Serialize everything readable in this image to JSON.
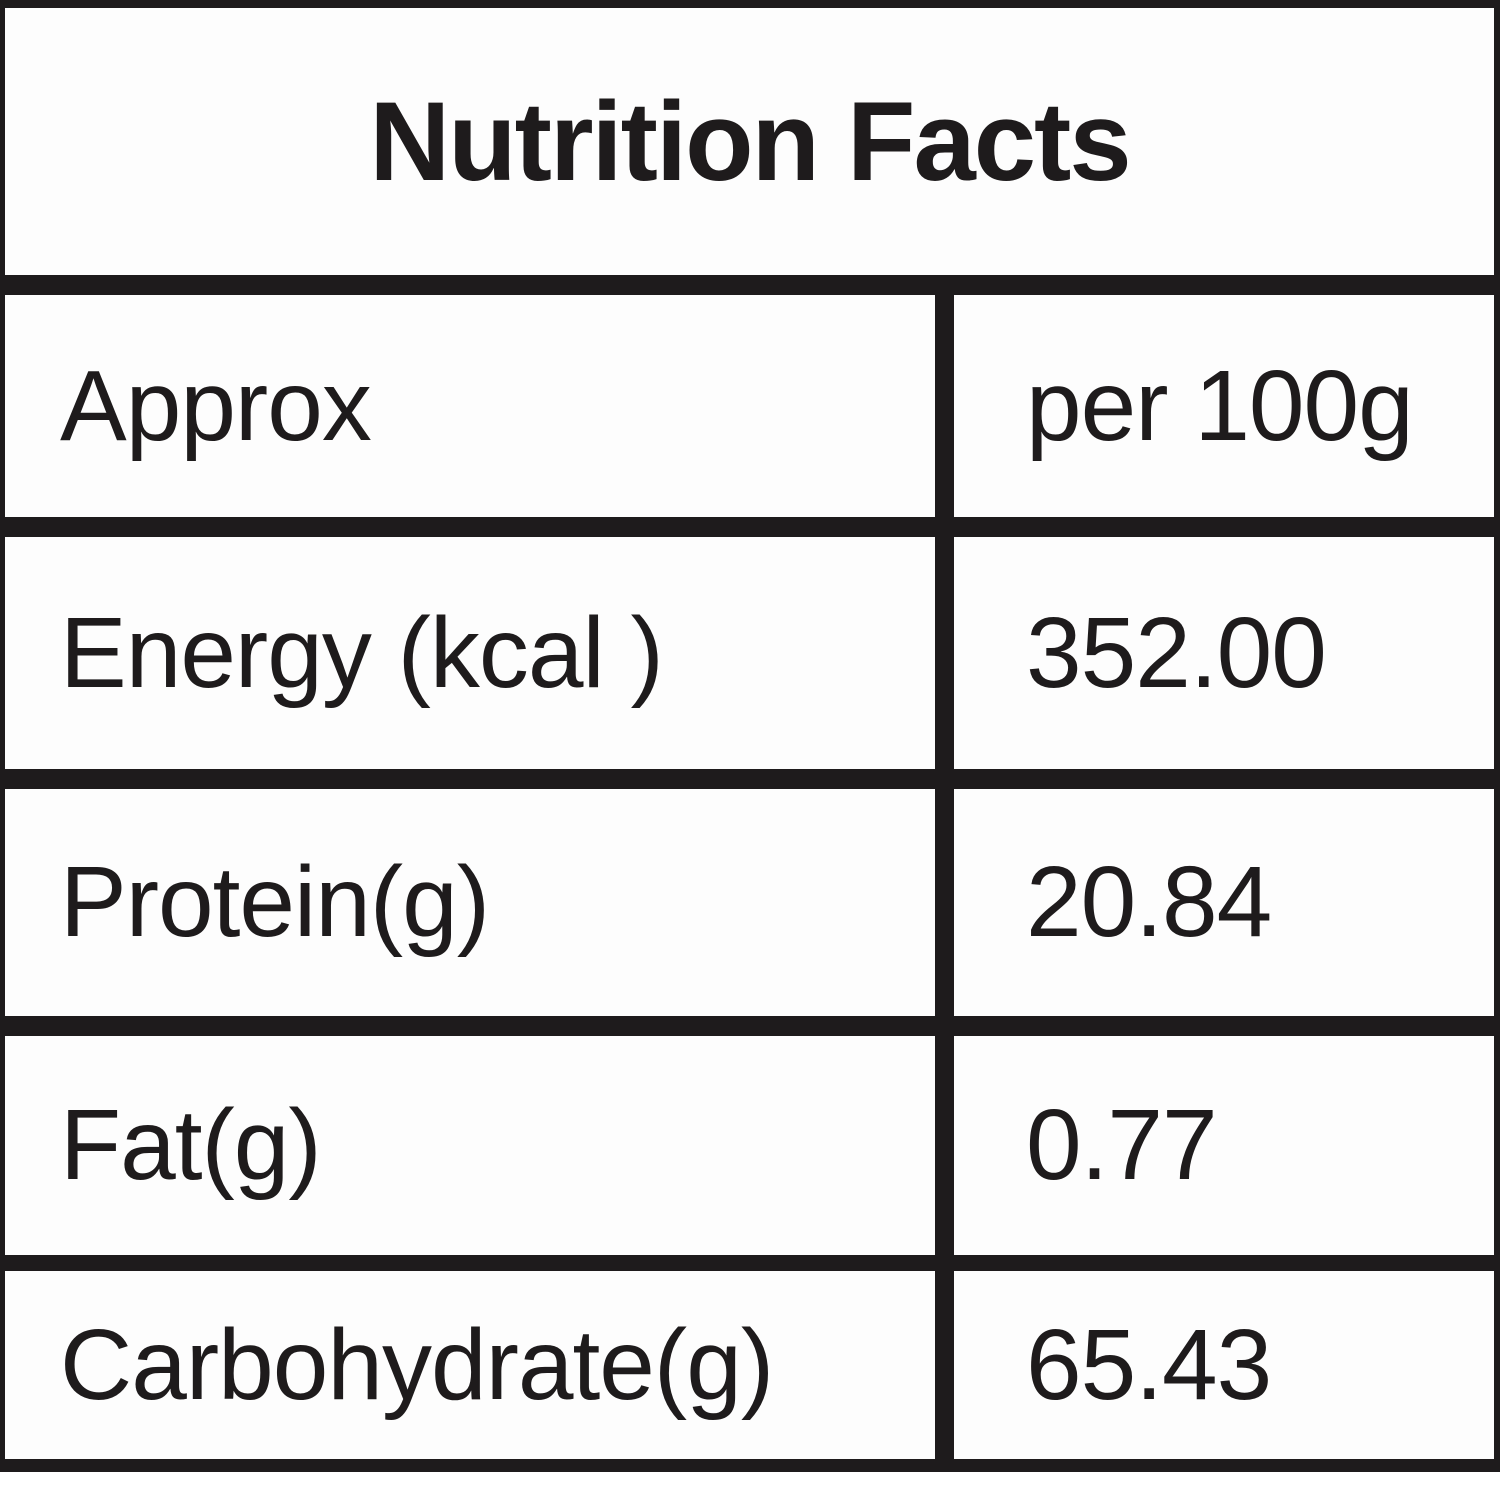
{
  "title": "Nutrition Facts",
  "columns": {
    "label_header": "Approx",
    "value_header": "per 100g"
  },
  "rows": [
    {
      "label": "Energy (kcal )",
      "value": "352.00"
    },
    {
      "label": "Protein(g)",
      "value": "20.84"
    },
    {
      "label": "Fat(g)",
      "value": "0.77"
    },
    {
      "label": "Carbohydrate(g)",
      "value": "65.43"
    }
  ],
  "colors": {
    "ink": "#1e1b1c",
    "paper": "#fdfdfd"
  }
}
